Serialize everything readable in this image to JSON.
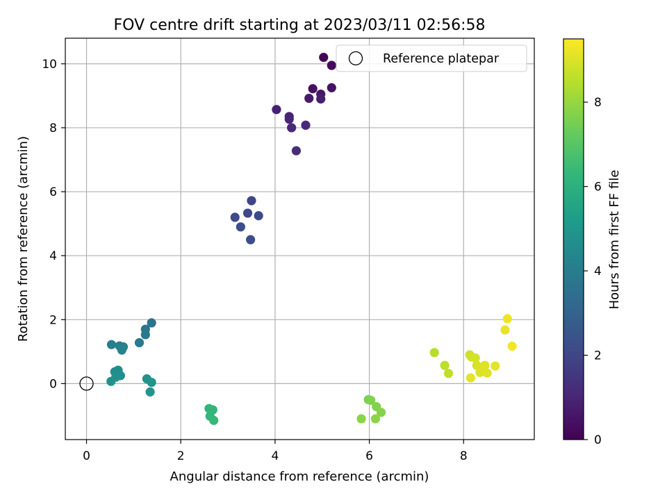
{
  "chart_data": {
    "type": "scatter",
    "title": "FOV centre drift starting at 2023/03/11 02:56:58",
    "xlabel": "Angular distance from reference (arcmin)",
    "ylabel": "Rotation from reference (arcmin)",
    "xlim": [
      -0.45,
      9.5
    ],
    "ylim": [
      -1.75,
      10.8
    ],
    "xticks": [
      0,
      2,
      4,
      6,
      8
    ],
    "yticks": [
      0,
      2,
      4,
      6,
      8,
      10
    ],
    "grid": true,
    "legend": {
      "position": "top-right",
      "entries": [
        "Reference platepar"
      ]
    },
    "reference_point": {
      "x": 0,
      "y": 0
    },
    "colorbar": {
      "label": "Hours from first FF file",
      "range": [
        0,
        9.5
      ],
      "ticks": [
        0,
        2,
        4,
        6,
        8
      ],
      "colormap": "viridis"
    },
    "points": [
      {
        "x": 5.03,
        "y": 10.2,
        "h": 0.1
      },
      {
        "x": 5.2,
        "y": 9.95,
        "h": 0.25
      },
      {
        "x": 4.8,
        "y": 9.22,
        "h": 0.4
      },
      {
        "x": 5.2,
        "y": 9.25,
        "h": 0.5
      },
      {
        "x": 4.97,
        "y": 9.05,
        "h": 0.6
      },
      {
        "x": 4.72,
        "y": 8.92,
        "h": 0.7
      },
      {
        "x": 4.97,
        "y": 8.9,
        "h": 0.75
      },
      {
        "x": 4.03,
        "y": 8.57,
        "h": 0.85
      },
      {
        "x": 4.3,
        "y": 8.35,
        "h": 0.95
      },
      {
        "x": 4.3,
        "y": 8.27,
        "h": 1.0
      },
      {
        "x": 4.35,
        "y": 8.0,
        "h": 1.05
      },
      {
        "x": 4.65,
        "y": 8.08,
        "h": 1.1
      },
      {
        "x": 4.45,
        "y": 7.28,
        "h": 1.2
      },
      {
        "x": 3.5,
        "y": 5.72,
        "h": 2.0
      },
      {
        "x": 3.42,
        "y": 5.33,
        "h": 2.05
      },
      {
        "x": 3.15,
        "y": 5.2,
        "h": 2.1
      },
      {
        "x": 3.65,
        "y": 5.25,
        "h": 2.15
      },
      {
        "x": 3.27,
        "y": 4.9,
        "h": 2.2
      },
      {
        "x": 3.48,
        "y": 4.5,
        "h": 2.25
      },
      {
        "x": 1.38,
        "y": 1.9,
        "h": 3.6
      },
      {
        "x": 1.25,
        "y": 1.7,
        "h": 3.7
      },
      {
        "x": 1.25,
        "y": 1.53,
        "h": 3.8
      },
      {
        "x": 1.12,
        "y": 1.28,
        "h": 3.9
      },
      {
        "x": 0.53,
        "y": 1.22,
        "h": 4.1
      },
      {
        "x": 0.7,
        "y": 1.18,
        "h": 4.15
      },
      {
        "x": 0.78,
        "y": 1.15,
        "h": 4.2
      },
      {
        "x": 0.75,
        "y": 1.05,
        "h": 4.25
      },
      {
        "x": 0.6,
        "y": 0.37,
        "h": 4.6
      },
      {
        "x": 0.67,
        "y": 0.42,
        "h": 4.65
      },
      {
        "x": 0.72,
        "y": 0.25,
        "h": 4.7
      },
      {
        "x": 0.62,
        "y": 0.2,
        "h": 4.75
      },
      {
        "x": 0.52,
        "y": 0.07,
        "h": 4.8
      },
      {
        "x": 1.28,
        "y": 0.15,
        "h": 4.85
      },
      {
        "x": 1.38,
        "y": 0.04,
        "h": 4.9
      },
      {
        "x": 1.35,
        "y": -0.26,
        "h": 4.95
      },
      {
        "x": 2.6,
        "y": -0.78,
        "h": 6.2
      },
      {
        "x": 2.68,
        "y": -0.82,
        "h": 6.25
      },
      {
        "x": 2.62,
        "y": -1.02,
        "h": 6.3
      },
      {
        "x": 2.7,
        "y": -1.15,
        "h": 6.35
      },
      {
        "x": 5.98,
        "y": -0.5,
        "h": 7.6
      },
      {
        "x": 6.03,
        "y": -0.52,
        "h": 7.65
      },
      {
        "x": 6.15,
        "y": -0.72,
        "h": 7.7
      },
      {
        "x": 6.25,
        "y": -0.9,
        "h": 7.75
      },
      {
        "x": 5.83,
        "y": -1.1,
        "h": 7.8
      },
      {
        "x": 6.13,
        "y": -1.1,
        "h": 7.85
      },
      {
        "x": 7.38,
        "y": 0.97,
        "h": 8.5
      },
      {
        "x": 7.6,
        "y": 0.57,
        "h": 8.55
      },
      {
        "x": 7.68,
        "y": 0.32,
        "h": 8.6
      },
      {
        "x": 8.13,
        "y": 0.9,
        "h": 8.8
      },
      {
        "x": 8.17,
        "y": 0.83,
        "h": 8.85
      },
      {
        "x": 8.25,
        "y": 0.8,
        "h": 8.9
      },
      {
        "x": 8.28,
        "y": 0.57,
        "h": 8.95
      },
      {
        "x": 8.35,
        "y": 0.35,
        "h": 9.0
      },
      {
        "x": 8.45,
        "y": 0.57,
        "h": 9.05
      },
      {
        "x": 8.5,
        "y": 0.33,
        "h": 9.05
      },
      {
        "x": 8.67,
        "y": 0.55,
        "h": 9.1
      },
      {
        "x": 8.15,
        "y": 0.18,
        "h": 9.1
      },
      {
        "x": 8.88,
        "y": 1.68,
        "h": 9.2
      },
      {
        "x": 8.93,
        "y": 2.03,
        "h": 9.3
      },
      {
        "x": 9.03,
        "y": 1.17,
        "h": 9.35
      }
    ]
  }
}
